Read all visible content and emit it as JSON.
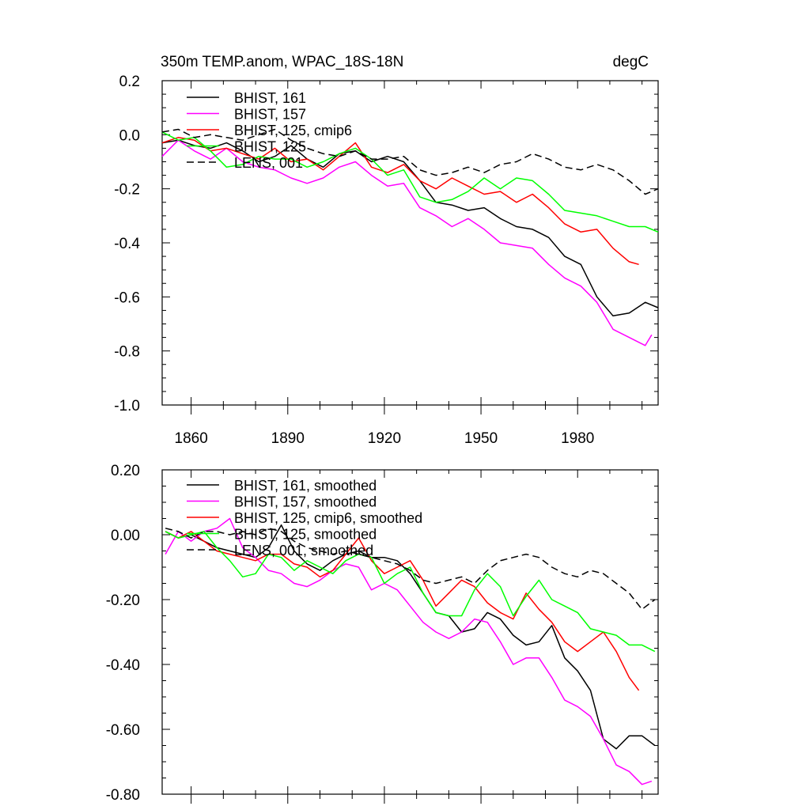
{
  "chart_data": [
    {
      "type": "line",
      "title": "350m TEMP.anom, WPAC_18S-18N",
      "units": "degC",
      "xlim": [
        1851,
        2005
      ],
      "ylim": [
        -1.0,
        0.2
      ],
      "x_ticks": [
        1860,
        1890,
        1920,
        1950,
        1980
      ],
      "y_ticks": [
        0.2,
        0.0,
        -0.2,
        -0.4,
        -0.6,
        -0.8,
        -1.0
      ],
      "y_tick_labels": [
        "0.2",
        "0.0",
        "-0.2",
        "-0.4",
        "-0.6",
        "-0.8",
        "-1.0"
      ],
      "legend_position": "top-left",
      "series": [
        {
          "name": "BHIST, 161",
          "color": "#000000",
          "dash": "solid",
          "x": [
            1851,
            1856,
            1861,
            1866,
            1871,
            1876,
            1881,
            1886,
            1891,
            1896,
            1901,
            1906,
            1911,
            1916,
            1921,
            1926,
            1931,
            1936,
            1941,
            1946,
            1951,
            1956,
            1961,
            1966,
            1971,
            1976,
            1981,
            1986,
            1991,
            1996,
            2001,
            2005
          ],
          "y": [
            -0.03,
            -0.02,
            -0.04,
            -0.05,
            -0.03,
            -0.06,
            -0.1,
            -0.08,
            -0.04,
            -0.09,
            -0.12,
            -0.07,
            -0.06,
            -0.1,
            -0.08,
            -0.1,
            -0.17,
            -0.25,
            -0.26,
            -0.28,
            -0.27,
            -0.31,
            -0.34,
            -0.35,
            -0.38,
            -0.45,
            -0.48,
            -0.6,
            -0.67,
            -0.66,
            -0.62,
            -0.64
          ]
        },
        {
          "name": "BHIST, 157",
          "color": "#ff00ff",
          "dash": "solid",
          "x": [
            1851,
            1856,
            1861,
            1866,
            1871,
            1876,
            1881,
            1886,
            1891,
            1896,
            1901,
            1906,
            1911,
            1916,
            1921,
            1926,
            1931,
            1936,
            1941,
            1946,
            1951,
            1956,
            1961,
            1966,
            1971,
            1976,
            1981,
            1986,
            1991,
            1996,
            2001,
            2003
          ],
          "y": [
            -0.08,
            -0.02,
            -0.06,
            -0.09,
            -0.05,
            -0.1,
            -0.12,
            -0.13,
            -0.16,
            -0.18,
            -0.16,
            -0.12,
            -0.1,
            -0.15,
            -0.19,
            -0.18,
            -0.27,
            -0.3,
            -0.34,
            -0.31,
            -0.35,
            -0.4,
            -0.41,
            -0.42,
            -0.48,
            -0.53,
            -0.56,
            -0.62,
            -0.72,
            -0.75,
            -0.78,
            -0.74
          ]
        },
        {
          "name": "BHIST, 125, cmip6",
          "color": "#ff0000",
          "dash": "solid",
          "x": [
            1851,
            1856,
            1861,
            1866,
            1871,
            1876,
            1881,
            1886,
            1891,
            1896,
            1901,
            1906,
            1911,
            1916,
            1921,
            1926,
            1931,
            1936,
            1941,
            1946,
            1951,
            1956,
            1961,
            1966,
            1971,
            1976,
            1981,
            1986,
            1991,
            1996,
            1999
          ],
          "y": [
            -0.03,
            -0.01,
            -0.02,
            -0.06,
            -0.05,
            -0.07,
            -0.09,
            -0.05,
            -0.1,
            -0.09,
            -0.13,
            -0.08,
            -0.03,
            -0.12,
            -0.14,
            -0.11,
            -0.17,
            -0.2,
            -0.16,
            -0.19,
            -0.22,
            -0.21,
            -0.25,
            -0.22,
            -0.27,
            -0.33,
            -0.36,
            -0.35,
            -0.42,
            -0.47,
            -0.48
          ]
        },
        {
          "name": "BHIST, 125",
          "color": "#00ff00",
          "dash": "solid",
          "x": [
            1851,
            1856,
            1861,
            1866,
            1871,
            1876,
            1881,
            1886,
            1891,
            1896,
            1901,
            1906,
            1911,
            1916,
            1921,
            1926,
            1931,
            1936,
            1941,
            1946,
            1951,
            1956,
            1961,
            1966,
            1971,
            1976,
            1981,
            1986,
            1991,
            1996,
            2001,
            2005
          ],
          "y": [
            0.01,
            -0.02,
            -0.01,
            -0.06,
            -0.12,
            -0.11,
            -0.08,
            -0.09,
            -0.09,
            -0.12,
            -0.1,
            -0.07,
            -0.05,
            -0.09,
            -0.15,
            -0.13,
            -0.23,
            -0.25,
            -0.24,
            -0.21,
            -0.16,
            -0.2,
            -0.16,
            -0.17,
            -0.22,
            -0.28,
            -0.29,
            -0.3,
            -0.32,
            -0.34,
            -0.34,
            -0.36
          ]
        },
        {
          "name": "LENS, 001",
          "color": "#000000",
          "dash": "dashed",
          "x": [
            1851,
            1856,
            1861,
            1866,
            1871,
            1876,
            1881,
            1886,
            1891,
            1896,
            1901,
            1906,
            1911,
            1916,
            1921,
            1926,
            1931,
            1936,
            1941,
            1946,
            1951,
            1956,
            1961,
            1966,
            1971,
            1976,
            1981,
            1986,
            1991,
            1996,
            2001,
            2005
          ],
          "y": [
            0.01,
            0.02,
            -0.01,
            0.0,
            -0.01,
            -0.02,
            0.0,
            0.02,
            -0.02,
            -0.05,
            -0.07,
            -0.08,
            -0.06,
            -0.09,
            -0.09,
            -0.08,
            -0.13,
            -0.15,
            -0.14,
            -0.12,
            -0.14,
            -0.11,
            -0.1,
            -0.07,
            -0.09,
            -0.12,
            -0.13,
            -0.11,
            -0.13,
            -0.17,
            -0.22,
            -0.2
          ]
        }
      ]
    },
    {
      "type": "line",
      "title": "",
      "xlim": [
        1851,
        2005
      ],
      "ylim": [
        -0.8,
        0.2
      ],
      "x_ticks": [
        1860,
        1890,
        1920,
        1950,
        1980
      ],
      "y_ticks": [
        0.2,
        0.0,
        -0.2,
        -0.4,
        -0.6,
        -0.8
      ],
      "y_tick_labels": [
        "0.20",
        "0.00",
        "-0.20",
        "-0.40",
        "-0.60",
        "-0.80"
      ],
      "legend_position": "top-left",
      "series": [
        {
          "name": "BHIST, 161, smoothed",
          "color": "#000000",
          "dash": "solid",
          "x": [
            1852,
            1856,
            1860,
            1864,
            1868,
            1872,
            1876,
            1880,
            1884,
            1888,
            1892,
            1896,
            1900,
            1904,
            1908,
            1912,
            1916,
            1920,
            1924,
            1928,
            1932,
            1936,
            1940,
            1944,
            1948,
            1952,
            1956,
            1960,
            1964,
            1968,
            1972,
            1976,
            1980,
            1984,
            1988,
            1992,
            1996,
            2000,
            2004
          ],
          "y": [
            0.01,
            -0.01,
            0.0,
            -0.02,
            -0.04,
            -0.05,
            -0.06,
            -0.07,
            -0.04,
            0.03,
            -0.05,
            -0.09,
            -0.11,
            -0.08,
            -0.06,
            -0.05,
            -0.07,
            -0.07,
            -0.08,
            -0.12,
            -0.18,
            -0.24,
            -0.25,
            -0.3,
            -0.29,
            -0.24,
            -0.26,
            -0.31,
            -0.34,
            -0.33,
            -0.28,
            -0.38,
            -0.42,
            -0.48,
            -0.63,
            -0.66,
            -0.62,
            -0.62,
            -0.65
          ]
        },
        {
          "name": "BHIST, 157, smoothed",
          "color": "#ff00ff",
          "dash": "solid",
          "x": [
            1852,
            1856,
            1860,
            1864,
            1868,
            1872,
            1876,
            1880,
            1884,
            1888,
            1892,
            1896,
            1900,
            1904,
            1908,
            1912,
            1916,
            1920,
            1924,
            1928,
            1932,
            1936,
            1940,
            1944,
            1948,
            1952,
            1956,
            1960,
            1964,
            1968,
            1972,
            1976,
            1980,
            1984,
            1988,
            1992,
            1996,
            2000,
            2003
          ],
          "y": [
            -0.06,
            0.01,
            -0.02,
            0.01,
            0.02,
            0.05,
            -0.04,
            -0.07,
            -0.11,
            -0.12,
            -0.15,
            -0.16,
            -0.14,
            -0.11,
            -0.09,
            -0.1,
            -0.17,
            -0.15,
            -0.17,
            -0.22,
            -0.27,
            -0.3,
            -0.32,
            -0.3,
            -0.26,
            -0.27,
            -0.33,
            -0.4,
            -0.38,
            -0.38,
            -0.44,
            -0.51,
            -0.53,
            -0.56,
            -0.63,
            -0.71,
            -0.73,
            -0.77,
            -0.76
          ]
        },
        {
          "name": "BHIST, 125, cmip6, smoothed",
          "color": "#ff0000",
          "dash": "solid",
          "x": [
            1852,
            1856,
            1860,
            1864,
            1868,
            1872,
            1876,
            1880,
            1884,
            1888,
            1892,
            1896,
            1900,
            1904,
            1908,
            1912,
            1916,
            1920,
            1924,
            1928,
            1932,
            1936,
            1940,
            1944,
            1948,
            1952,
            1956,
            1960,
            1964,
            1968,
            1972,
            1976,
            1980,
            1984,
            1988,
            1992,
            1996,
            1999
          ],
          "y": [
            0.01,
            -0.01,
            0.01,
            -0.02,
            -0.05,
            -0.06,
            -0.07,
            -0.08,
            -0.06,
            -0.06,
            -0.09,
            -0.1,
            -0.13,
            -0.11,
            -0.06,
            -0.01,
            -0.08,
            -0.12,
            -0.1,
            -0.08,
            -0.14,
            -0.22,
            -0.18,
            -0.14,
            -0.16,
            -0.21,
            -0.24,
            -0.26,
            -0.18,
            -0.23,
            -0.27,
            -0.33,
            -0.36,
            -0.33,
            -0.3,
            -0.36,
            -0.44,
            -0.48
          ]
        },
        {
          "name": "BHIST, 125, smoothed",
          "color": "#00ff00",
          "dash": "solid",
          "x": [
            1852,
            1856,
            1860,
            1864,
            1868,
            1872,
            1876,
            1880,
            1884,
            1888,
            1892,
            1896,
            1900,
            1904,
            1908,
            1912,
            1916,
            1920,
            1924,
            1928,
            1932,
            1936,
            1940,
            1944,
            1948,
            1952,
            1956,
            1960,
            1964,
            1968,
            1972,
            1976,
            1980,
            1984,
            1988,
            1992,
            1996,
            2000,
            2004
          ],
          "y": [
            0.01,
            -0.01,
            0.0,
            0.01,
            -0.04,
            -0.08,
            -0.13,
            -0.12,
            -0.06,
            -0.07,
            -0.11,
            -0.08,
            -0.1,
            -0.12,
            -0.08,
            -0.06,
            -0.07,
            -0.15,
            -0.12,
            -0.1,
            -0.18,
            -0.24,
            -0.25,
            -0.25,
            -0.17,
            -0.12,
            -0.16,
            -0.25,
            -0.19,
            -0.14,
            -0.2,
            -0.22,
            -0.24,
            -0.29,
            -0.3,
            -0.31,
            -0.34,
            -0.34,
            -0.36
          ]
        },
        {
          "name": "LENS, 001, smoothed",
          "color": "#000000",
          "dash": "dashed",
          "x": [
            1852,
            1856,
            1860,
            1864,
            1868,
            1872,
            1876,
            1880,
            1884,
            1888,
            1892,
            1896,
            1900,
            1904,
            1908,
            1912,
            1916,
            1920,
            1924,
            1928,
            1932,
            1936,
            1940,
            1944,
            1948,
            1952,
            1956,
            1960,
            1964,
            1968,
            1972,
            1976,
            1980,
            1984,
            1988,
            1992,
            1996,
            2000,
            2004
          ],
          "y": [
            0.02,
            0.01,
            -0.01,
            0.01,
            0.01,
            0.0,
            0.01,
            0.0,
            0.02,
            0.01,
            -0.02,
            -0.04,
            -0.05,
            -0.06,
            -0.05,
            -0.06,
            -0.07,
            -0.08,
            -0.09,
            -0.11,
            -0.14,
            -0.15,
            -0.14,
            -0.13,
            -0.15,
            -0.11,
            -0.08,
            -0.07,
            -0.06,
            -0.07,
            -0.1,
            -0.12,
            -0.13,
            -0.11,
            -0.12,
            -0.15,
            -0.18,
            -0.23,
            -0.2
          ]
        }
      ]
    }
  ]
}
